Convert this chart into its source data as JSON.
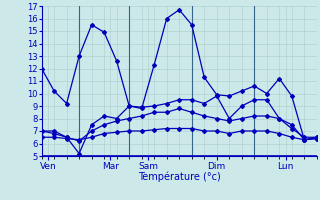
{
  "xlabel": "Température (°c)",
  "background_color": "#cce8e8",
  "grid_color": "#aacccc",
  "line_color": "#0000bb",
  "separator_color": "#336688",
  "ylim": [
    5,
    17
  ],
  "yticks": [
    5,
    6,
    7,
    8,
    9,
    10,
    11,
    12,
    13,
    14,
    15,
    16,
    17
  ],
  "day_labels": [
    "Ven",
    "Mar",
    "Sam",
    "Dim",
    "Lun"
  ],
  "day_tick_positions": [
    0.5,
    5.5,
    8.5,
    14.0,
    19.5
  ],
  "day_vline_positions": [
    3,
    7,
    12,
    17
  ],
  "xlim": [
    0,
    22
  ],
  "series": [
    [
      12,
      10.2,
      9.2,
      13.0,
      15.5,
      14.9,
      12.6,
      9.0,
      8.8,
      12.3,
      16.0,
      16.7,
      15.5,
      11.3,
      9.9,
      9.8,
      10.2,
      10.6,
      10.0,
      11.2,
      9.8,
      6.3,
      6.5
    ],
    [
      7.0,
      7.0,
      6.5,
      5.2,
      7.5,
      8.2,
      8.0,
      9.0,
      8.9,
      9.0,
      9.2,
      9.5,
      9.5,
      9.2,
      9.8,
      8.0,
      9.0,
      9.5,
      9.5,
      8.0,
      7.2,
      6.5,
      6.5
    ],
    [
      7.0,
      6.8,
      6.5,
      6.2,
      7.0,
      7.5,
      7.8,
      8.0,
      8.2,
      8.5,
      8.5,
      8.8,
      8.5,
      8.2,
      8.0,
      7.8,
      8.0,
      8.2,
      8.2,
      8.0,
      7.5,
      6.3,
      6.4
    ],
    [
      6.5,
      6.5,
      6.4,
      6.3,
      6.5,
      6.8,
      6.9,
      7.0,
      7.0,
      7.1,
      7.2,
      7.2,
      7.2,
      7.0,
      7.0,
      6.8,
      7.0,
      7.0,
      7.0,
      6.8,
      6.5,
      6.3,
      6.4
    ]
  ],
  "n_points": 23,
  "marker": "D",
  "markersize": 2.0,
  "linewidth": 0.9,
  "xlabel_fontsize": 7,
  "tick_fontsize": 6,
  "day_label_fontsize": 6.5
}
